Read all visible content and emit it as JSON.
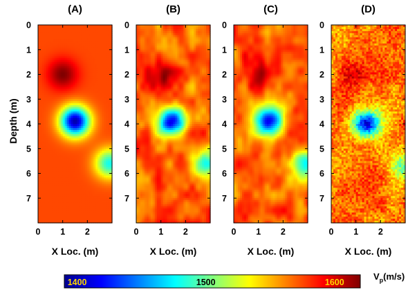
{
  "chart_data": [
    {
      "type": "heatmap",
      "title": "(A)",
      "xlabel": "X Loc. (m)",
      "ylabel": "Depth (m)",
      "xlim": [
        0,
        3
      ],
      "ylim": [
        0,
        8
      ],
      "x_ticks": [
        "0",
        "1",
        "2"
      ],
      "y_ticks": [
        "0",
        "1",
        "2",
        "3",
        "4",
        "5",
        "6",
        "7"
      ],
      "background_velocity": 1575,
      "anomalies": [
        {
          "x": 1.0,
          "depth": 2.0,
          "velocity": 1620
        },
        {
          "x": 1.5,
          "depth": 3.9,
          "velocity": 1400
        },
        {
          "x": 2.9,
          "depth": 5.6,
          "velocity": 1480
        }
      ],
      "noise": "none"
    },
    {
      "type": "heatmap",
      "title": "(B)",
      "xlabel": "X Loc. (m)",
      "xlim": [
        0,
        3
      ],
      "ylim": [
        0,
        8
      ],
      "x_ticks": [
        "0",
        "1",
        "2"
      ],
      "y_ticks": [
        "0",
        "1",
        "2",
        "3",
        "4",
        "5",
        "6",
        "7"
      ],
      "background_velocity": 1570,
      "anomalies": [
        {
          "x": 1.1,
          "depth": 2.0,
          "velocity": 1620
        },
        {
          "x": 1.4,
          "depth": 3.9,
          "velocity": 1420
        },
        {
          "x": 2.9,
          "depth": 5.6,
          "velocity": 1490
        }
      ],
      "noise": "smooth"
    },
    {
      "type": "heatmap",
      "title": "(C)",
      "xlabel": "X Loc. (m)",
      "xlim": [
        0,
        3
      ],
      "ylim": [
        0,
        8
      ],
      "x_ticks": [
        "0",
        "1",
        "2"
      ],
      "y_ticks": [
        "0",
        "1",
        "2",
        "3",
        "4",
        "5",
        "6",
        "7"
      ],
      "background_velocity": 1570,
      "anomalies": [
        {
          "x": 1.1,
          "depth": 2.0,
          "velocity": 1620
        },
        {
          "x": 1.4,
          "depth": 3.9,
          "velocity": 1420
        },
        {
          "x": 2.9,
          "depth": 5.6,
          "velocity": 1490
        }
      ],
      "noise": "smooth"
    },
    {
      "type": "heatmap",
      "title": "(D)",
      "xlabel": "X Loc. (m)",
      "xlim": [
        0,
        3
      ],
      "ylim": [
        0,
        8
      ],
      "x_ticks": [
        "0",
        "1",
        "2"
      ],
      "y_ticks": [
        "0",
        "1",
        "2",
        "3",
        "4",
        "5",
        "6",
        "7"
      ],
      "background_velocity": 1565,
      "anomalies": [
        {
          "x": 1.0,
          "depth": 2.0,
          "velocity": 1600
        },
        {
          "x": 1.4,
          "depth": 4.0,
          "velocity": 1420
        },
        {
          "x": 2.9,
          "depth": 5.6,
          "velocity": 1500
        }
      ],
      "noise": "pixelated"
    }
  ],
  "colorbar": {
    "min": 1390,
    "max": 1620,
    "ticks": [
      "1400",
      "1500",
      "1600"
    ],
    "tick_values": [
      1400,
      1500,
      1600
    ],
    "label_main": "V",
    "label_sub": "p",
    "label_unit": "(m/s)",
    "colormap": "jet"
  }
}
